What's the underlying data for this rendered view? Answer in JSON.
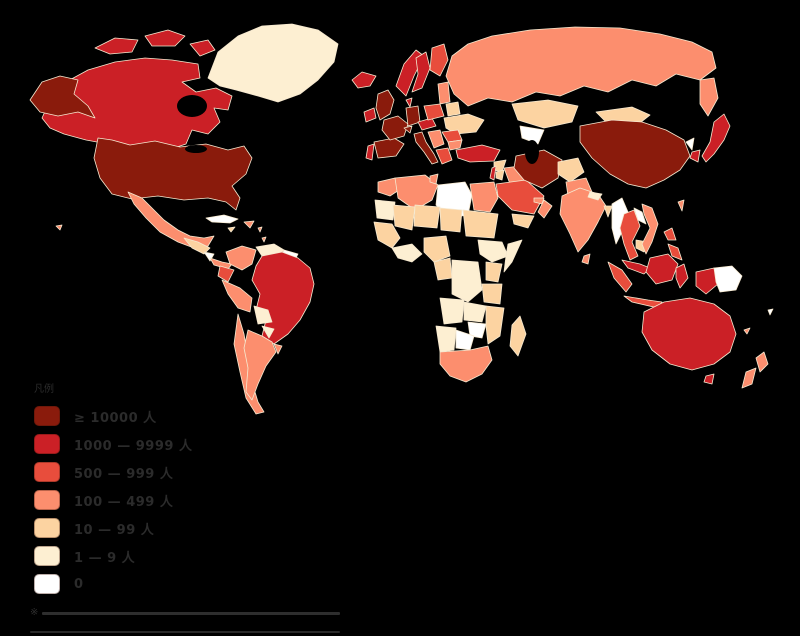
{
  "page": {
    "background": "#000000"
  },
  "legend": {
    "title": "凡例",
    "items": [
      {
        "label": "≥ 10000 人",
        "category": "c1"
      },
      {
        "label": "1000 — 9999 人",
        "category": "c2"
      },
      {
        "label": "500 — 999 人",
        "category": "c3"
      },
      {
        "label": "100 — 499 人",
        "category": "c4"
      },
      {
        "label": "10 — 99 人",
        "category": "c5"
      },
      {
        "label": "1 — 9 人",
        "category": "c6"
      },
      {
        "label": "0",
        "category": "c7"
      }
    ],
    "footnote_marker": "※"
  },
  "map": {
    "type": "choropleth",
    "palette": {
      "c1": "#8a1b0c",
      "c2": "#cb2026",
      "c3": "#e84d3c",
      "c4": "#fc8e6e",
      "c5": "#fcd3a1",
      "c6": "#fdefd2",
      "c7": "#ffffff"
    },
    "border_color": "#f6e9d0",
    "ocean_color": "#000000",
    "regions": {
      "greenland": "c6",
      "canada": "c2",
      "canada-arctic-1": "c2",
      "canada-arctic-2": "c2",
      "canada-arctic-3": "c2",
      "alaska": "c1",
      "usa": "c1",
      "hawaii": "c4",
      "mexico": "c4",
      "cuba": "c7",
      "hispaniola": "c4",
      "jamaica": "c5",
      "guatemala-honduras": "c5",
      "nicaragua": "c7",
      "costa-rica-panama": "c4",
      "lesser-antilles-1": "c4",
      "lesser-antilles-2": "c4",
      "colombia": "c4",
      "venezuela": "c6",
      "guyanas": "c7",
      "ecuador": "c3",
      "peru": "c4",
      "brazil": "c2",
      "bolivia": "c6",
      "paraguay": "c6",
      "chile": "c4",
      "argentina": "c4",
      "uruguay": "c4",
      "iceland": "c2",
      "ireland": "c2",
      "uk": "c1",
      "norway": "c2",
      "sweden": "c2",
      "finland": "c3",
      "denmark": "c2",
      "baltics": "c4",
      "portugal": "c2",
      "spain": "c1",
      "france": "c1",
      "germany": "c1",
      "switzerland": "c1",
      "italy": "c1",
      "austria-czechia": "c2",
      "poland": "c3",
      "belarus": "c5",
      "ukraine": "c5",
      "romania": "c3",
      "balkans": "c4",
      "greece": "c3",
      "bulgaria": "c4",
      "turkey": "c2",
      "syria": "c5",
      "iraq": "c4",
      "israel": "c2",
      "jordan": "c5",
      "saudi-arabia": "c3",
      "yemen": "c5",
      "oman": "c4",
      "uae-qatar": "c4",
      "iran": "c1",
      "afghanistan": "c5",
      "pakistan": "c4",
      "russia": "c4",
      "russia-far-east": "c4",
      "kazakhstan": "c5",
      "turkmenistan-uzbekistan": "c7",
      "mongolia": "c5",
      "china": "c1",
      "north-korea": "c7",
      "south-korea": "c2",
      "japan": "c2",
      "taiwan": "c4",
      "india": "c4",
      "nepal": "c6",
      "bangladesh": "c5",
      "sri-lanka": "c4",
      "myanmar": "c7",
      "thailand": "c3",
      "laos": "c7",
      "cambodia": "c5",
      "vietnam": "c4",
      "malaysia": "c2",
      "borneo": "c2",
      "sumatra": "c3",
      "java": "c3",
      "sulawesi": "c2",
      "philippines-north": "c3",
      "philippines-south": "c3",
      "new-guinea-west": "c2",
      "papua-new-guinea": "c7",
      "fiji": "c7",
      "new-caledonia": "c4",
      "australia": "c2",
      "tasmania": "c2",
      "new-zealand-north": "c4",
      "new-zealand-south": "c4",
      "morocco": "c4",
      "algeria": "c4",
      "tunisia": "c4",
      "libya": "c7",
      "egypt": "c4",
      "mauritania": "c6",
      "mali": "c5",
      "niger": "c5",
      "chad": "c5",
      "sudan": "c5",
      "west-africa": "c5",
      "guinea-region": "c6",
      "nigeria": "c5",
      "ethiopia": "c6",
      "somalia": "c6",
      "cameroon-gabon": "c5",
      "dr-congo": "c6",
      "kenya": "c5",
      "tanzania": "c5",
      "angola": "c6",
      "zambia": "c6",
      "mozambique": "c5",
      "zimbabwe": "c7",
      "botswana": "c7",
      "namibia": "c6",
      "south-africa": "c4",
      "madagascar": "c5"
    }
  }
}
